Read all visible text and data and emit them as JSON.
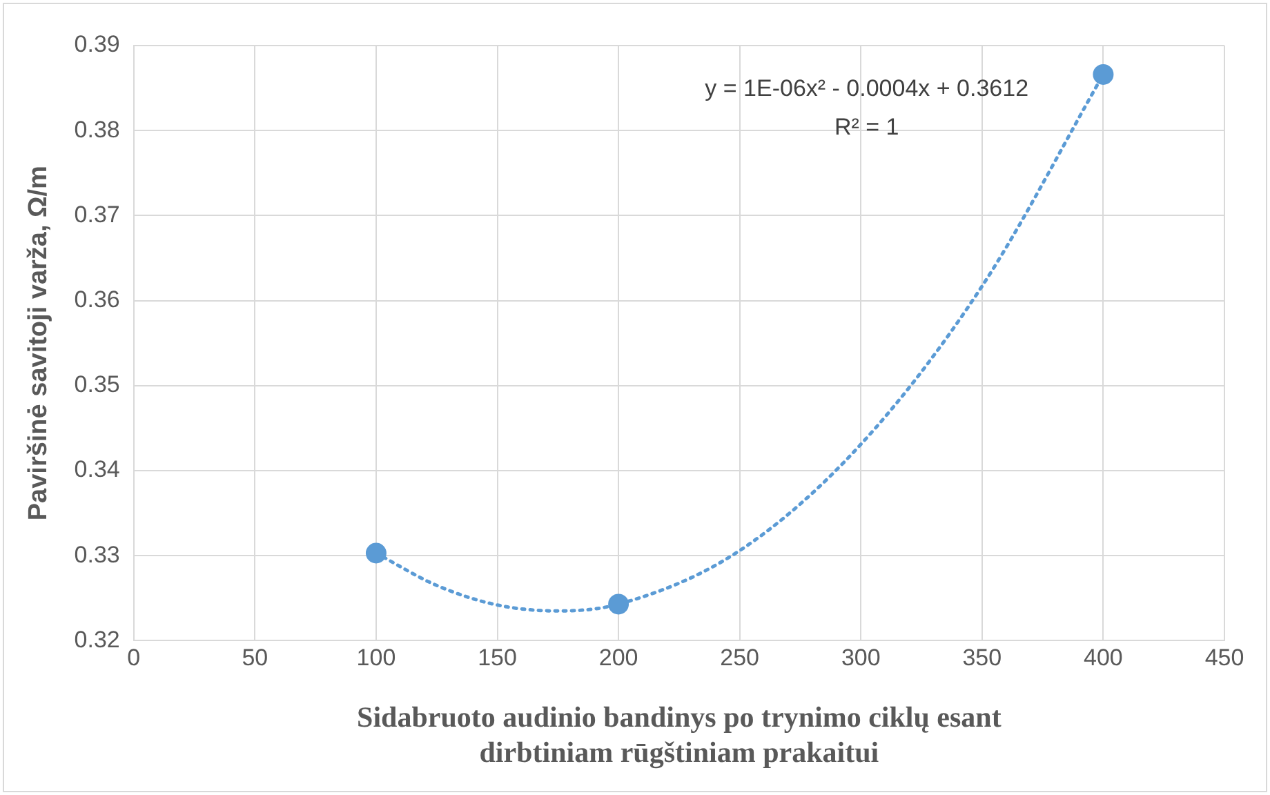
{
  "chart_data": {
    "type": "scatter",
    "xlabel": "Sidabruoto audinio bandinys po trynimo ciklų esant\ndirbtiniam rūgštiniam prakaitui",
    "ylabel": "Paviršinė savitoji varža, Ω/m",
    "x": [
      100,
      200,
      400
    ],
    "series": [
      {
        "type": "scatter",
        "color": "#5b9bd5",
        "marker": "circle",
        "values": [
          0.3303,
          0.3243,
          0.3866
        ]
      },
      {
        "type": "line",
        "color": "#5b9bd5",
        "marker": "none",
        "line_style": "dotted",
        "x": [
          100,
          125,
          150,
          175,
          200,
          250,
          300,
          350,
          400
        ],
        "values": [
          0.3303,
          0.3265,
          0.3242,
          0.3235,
          0.3243,
          0.3306,
          0.3431,
          0.3617,
          0.3866
        ]
      }
    ],
    "xlim": [
      0,
      450
    ],
    "xticks": [
      0,
      50,
      100,
      150,
      200,
      250,
      300,
      350,
      400,
      450
    ],
    "ylim": [
      0.32,
      0.39
    ],
    "yticks": [
      0.32,
      0.33,
      0.34,
      0.35,
      0.36,
      0.37,
      0.38,
      0.39
    ],
    "grid": true,
    "legend": false,
    "annotations": [
      "y = 1E-06x² - 0.0004x + 0.3612",
      "R² = 1"
    ]
  }
}
